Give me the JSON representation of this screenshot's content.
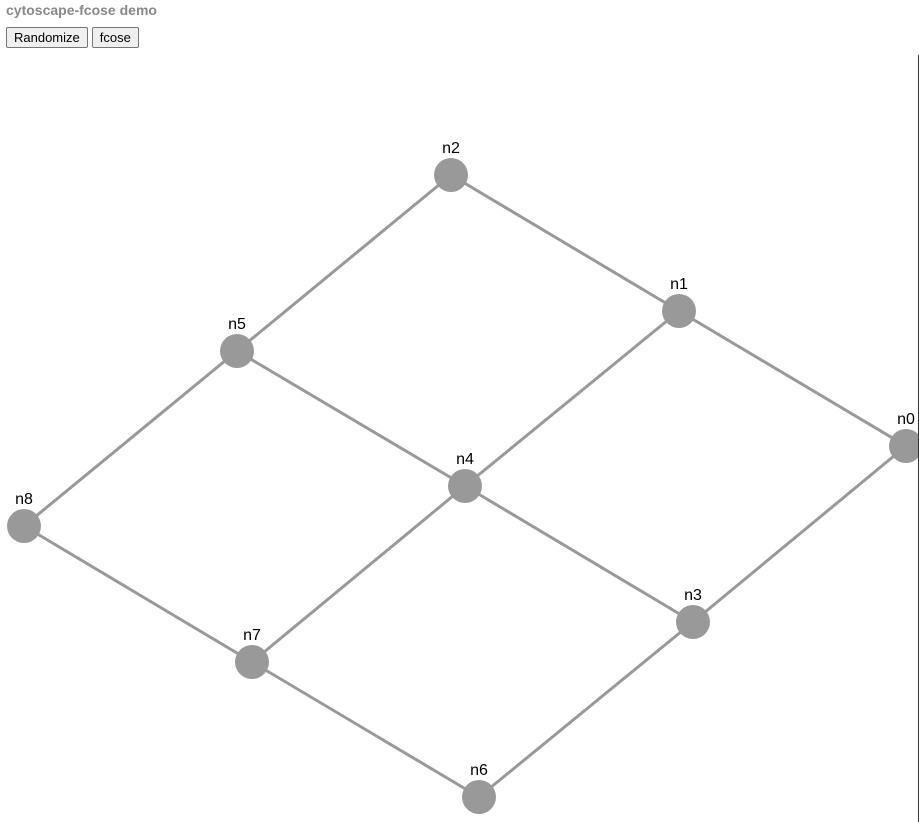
{
  "page": {
    "title": "cytoscape-fcose demo"
  },
  "toolbar": {
    "randomize_label": "Randomize",
    "fcose_label": "fcose"
  },
  "graph": {
    "node_color": "#999999",
    "edge_color": "#999999",
    "nodes": [
      {
        "id": "n0",
        "label": "n0"
      },
      {
        "id": "n1",
        "label": "n1"
      },
      {
        "id": "n2",
        "label": "n2"
      },
      {
        "id": "n3",
        "label": "n3"
      },
      {
        "id": "n4",
        "label": "n4"
      },
      {
        "id": "n5",
        "label": "n5"
      },
      {
        "id": "n6",
        "label": "n6"
      },
      {
        "id": "n7",
        "label": "n7"
      },
      {
        "id": "n8",
        "label": "n8"
      }
    ],
    "edges": [
      {
        "source": "n2",
        "target": "n1"
      },
      {
        "source": "n2",
        "target": "n5"
      },
      {
        "source": "n1",
        "target": "n0"
      },
      {
        "source": "n1",
        "target": "n4"
      },
      {
        "source": "n5",
        "target": "n4"
      },
      {
        "source": "n5",
        "target": "n8"
      },
      {
        "source": "n0",
        "target": "n3"
      },
      {
        "source": "n4",
        "target": "n3"
      },
      {
        "source": "n4",
        "target": "n7"
      },
      {
        "source": "n8",
        "target": "n7"
      },
      {
        "source": "n3",
        "target": "n6"
      },
      {
        "source": "n7",
        "target": "n6"
      }
    ]
  }
}
